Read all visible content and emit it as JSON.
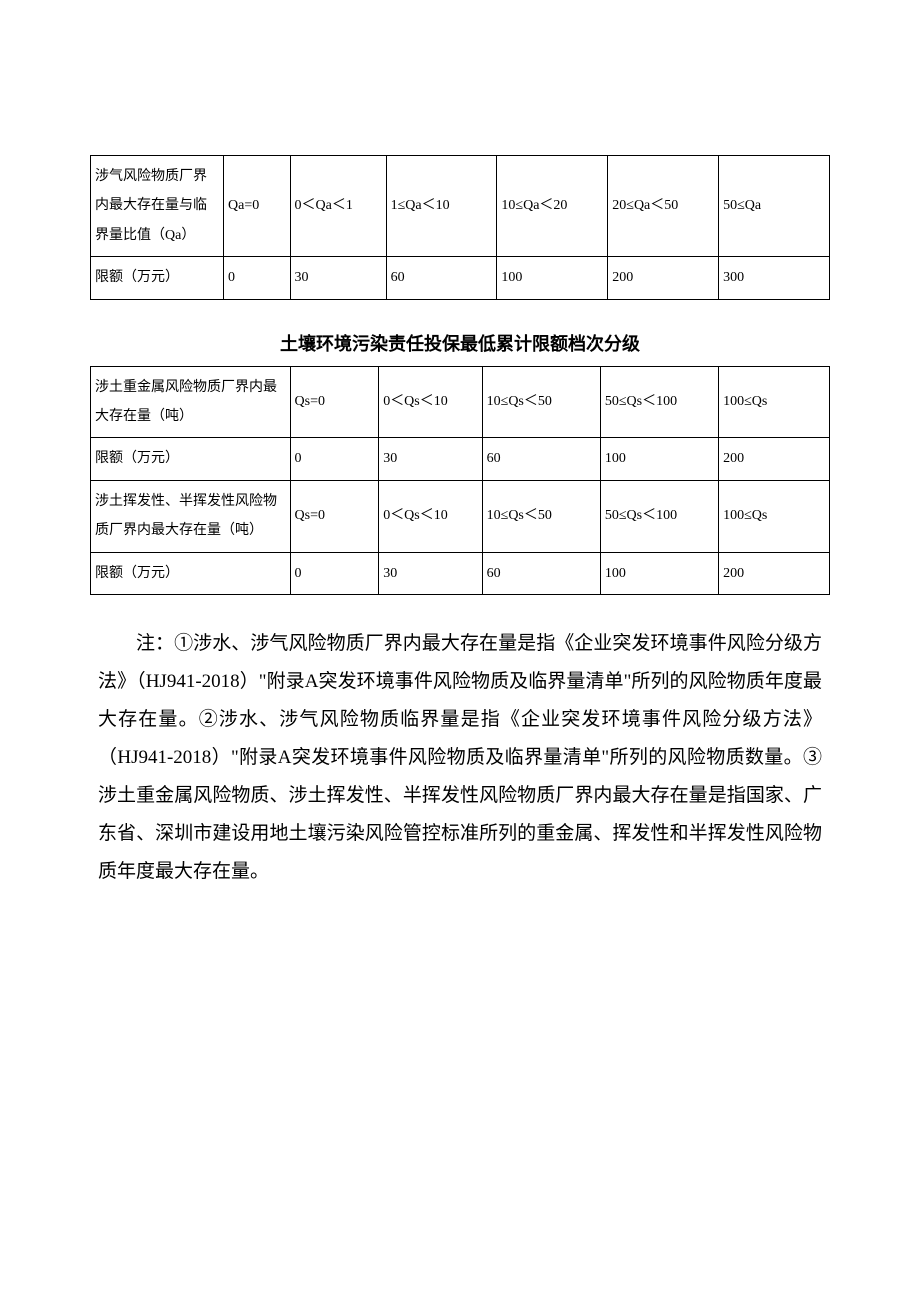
{
  "table1": {
    "col_widths": [
      "18%",
      "9%",
      "13%",
      "15%",
      "15%",
      "15%",
      "15%"
    ],
    "rows": [
      [
        "涉气风险物质厂界内最大存在量与临界量比值（Qa）",
        "Qa=0",
        "0＜Qa＜1",
        "1≤Qa＜10",
        "10≤Qa＜20",
        "20≤Qa＜50",
        "50≤Qa"
      ],
      [
        "限额（万元）",
        "0",
        "30",
        "60",
        "100",
        "200",
        "300"
      ]
    ]
  },
  "title2": "土壤环境污染责任投保最低累计限额档次分级",
  "table2": {
    "col_widths": [
      "27%",
      "12%",
      "14%",
      "16%",
      "16%",
      "15%"
    ],
    "rows": [
      [
        "涉土重金属风险物质厂界内最大存在量（吨）",
        "Qs=0",
        "0＜Qs＜10",
        "10≤Qs＜50",
        "50≤Qs＜100",
        "100≤Qs"
      ],
      [
        "限额（万元）",
        "0",
        "30",
        "60",
        "100",
        "200"
      ],
      [
        "涉土挥发性、半挥发性风险物质厂界内最大存在量（吨）",
        "Qs=0",
        "0＜Qs＜10",
        "10≤Qs＜50",
        "50≤Qs＜100",
        "100≤Qs"
      ],
      [
        "限额（万元）",
        "0",
        "30",
        "60",
        "100",
        "200"
      ]
    ]
  },
  "note": "注：①涉水、涉气风险物质厂界内最大存在量是指《企业突发环境事件风险分级方法》（HJ941-2018）\"附录A突发环境事件风险物质及临界量清单\"所列的风险物质年度最大存在量。②涉水、涉气风险物质临界量是指《企业突发环境事件风险分级方法》（HJ941-2018）\"附录A突发环境事件风险物质及临界量清单\"所列的风险物质数量。③涉土重金属风险物质、涉土挥发性、半挥发性风险物质厂界内最大存在量是指国家、广东省、深圳市建设用地土壤污染风险管控标准所列的重金属、挥发性和半挥发性风险物质年度最大存在量。"
}
